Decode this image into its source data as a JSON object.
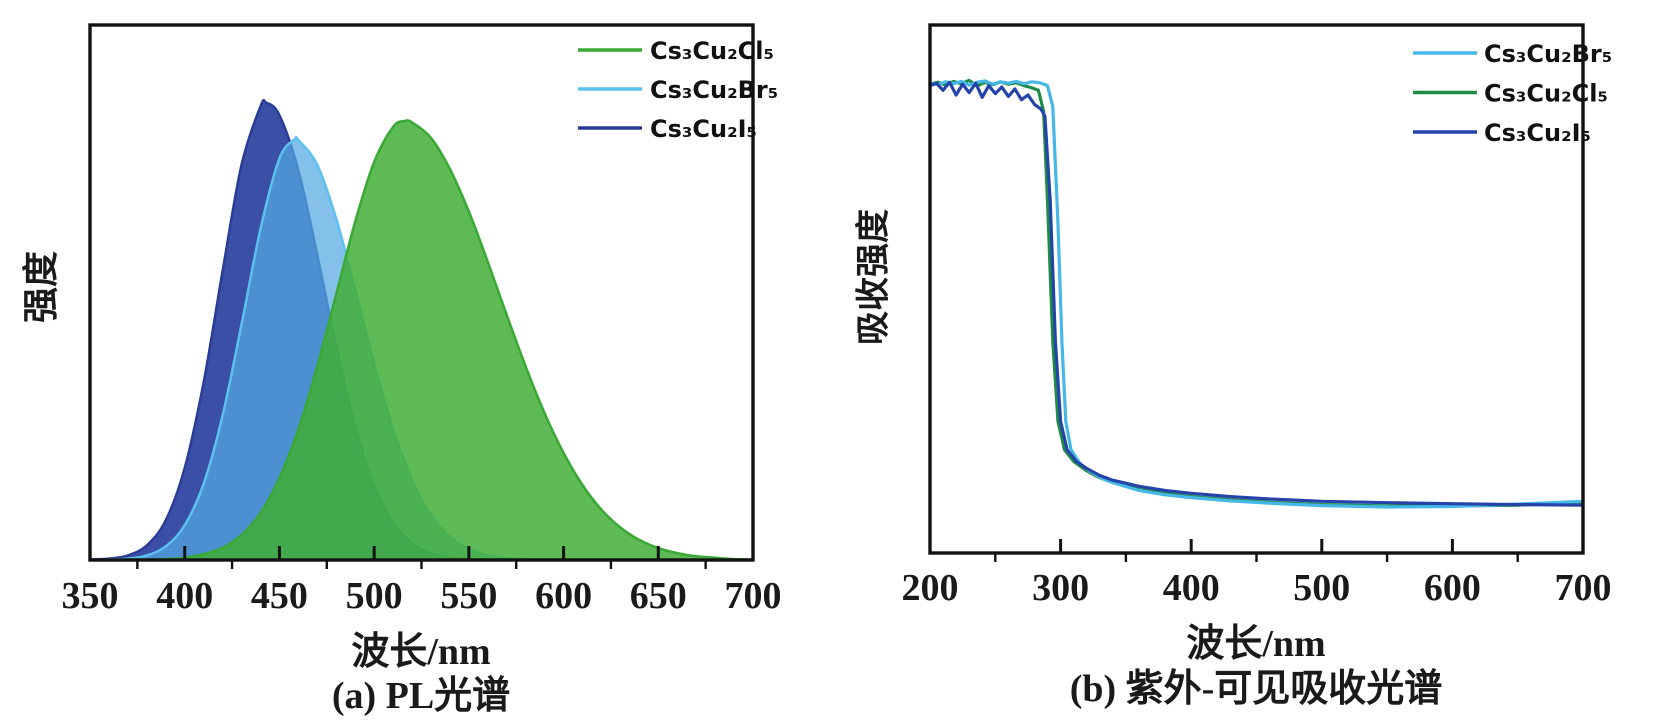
{
  "figure": {
    "background": "#ffffff",
    "frame_color": "#111111"
  },
  "chart_data": [
    {
      "type": "area",
      "id": "a",
      "caption": "(a) PL光谱",
      "xlabel": "波长/nm",
      "ylabel": "强度",
      "xlim": [
        350,
        700
      ],
      "ylim": [
        0,
        1.17
      ],
      "xticks": [
        350,
        400,
        450,
        500,
        550,
        600,
        650,
        700
      ],
      "xminor": [
        375,
        425,
        475,
        525,
        575,
        625,
        675
      ],
      "yticks": [],
      "grid": false,
      "legend_position": "top-right",
      "draw_order": [
        2,
        1,
        0
      ],
      "series": [
        {
          "name": "Cs₃Cu₂Cl₅",
          "color": "#3aa835",
          "fill": "#41ae36",
          "fill_opacity": 0.85,
          "peak_nm": 516,
          "x": [
            350,
            360,
            370,
            380,
            390,
            400,
            410,
            420,
            430,
            440,
            450,
            460,
            470,
            480,
            490,
            500,
            510,
            516,
            520,
            530,
            540,
            550,
            560,
            570,
            580,
            590,
            600,
            610,
            620,
            630,
            640,
            650,
            660,
            670,
            680,
            690,
            700
          ],
          "y": [
            0,
            0,
            0.001,
            0.001,
            0.002,
            0.005,
            0.013,
            0.027,
            0.055,
            0.103,
            0.179,
            0.286,
            0.424,
            0.582,
            0.74,
            0.87,
            0.947,
            0.96,
            0.957,
            0.923,
            0.855,
            0.762,
            0.652,
            0.536,
            0.423,
            0.321,
            0.234,
            0.164,
            0.11,
            0.071,
            0.044,
            0.026,
            0.015,
            0.008,
            0.005,
            0.002,
            0.001
          ]
        },
        {
          "name": "Cs₃Cu₂Br₅",
          "color": "#5cc1ee",
          "fill": "#55a9e2",
          "fill_opacity": 0.72,
          "peak_nm": 458,
          "x": [
            350,
            360,
            370,
            380,
            390,
            400,
            410,
            420,
            430,
            440,
            450,
            458,
            460,
            470,
            480,
            490,
            500,
            510,
            520,
            530,
            540,
            550,
            560,
            570,
            580,
            590,
            600
          ],
          "y": [
            0,
            0.001,
            0.003,
            0.01,
            0.03,
            0.076,
            0.167,
            0.316,
            0.515,
            0.724,
            0.878,
            0.92,
            0.918,
            0.864,
            0.746,
            0.591,
            0.429,
            0.286,
            0.175,
            0.098,
            0.05,
            0.024,
            0.01,
            0.004,
            0.002,
            0.001,
            0
          ]
        },
        {
          "name": "Cs₃Cu₂I₅",
          "color": "#2a3d96",
          "fill": "#3a4fa5",
          "fill_opacity": 1.0,
          "peak_nm": 443,
          "x": [
            350,
            360,
            370,
            380,
            390,
            400,
            410,
            420,
            430,
            440,
            443,
            450,
            460,
            470,
            480,
            490,
            500,
            510,
            520,
            530,
            540,
            550,
            560,
            570
          ],
          "y": [
            0.001,
            0.003,
            0.01,
            0.032,
            0.087,
            0.201,
            0.389,
            0.632,
            0.864,
            0.992,
            1.0,
            0.973,
            0.852,
            0.667,
            0.467,
            0.293,
            0.164,
            0.083,
            0.037,
            0.015,
            0.005,
            0.002,
            0.001,
            0
          ]
        }
      ]
    },
    {
      "type": "line",
      "id": "b",
      "caption": "(b) 紫外-可见吸收光谱",
      "xlabel": "波长/nm",
      "ylabel": "吸收强度",
      "xlim": [
        200,
        700
      ],
      "ylim": [
        0,
        1.124
      ],
      "xticks": [
        200,
        300,
        400,
        500,
        600,
        700
      ],
      "xminor": [
        250,
        350,
        450,
        550,
        650
      ],
      "yticks": [],
      "grid": false,
      "legend_position": "top-right",
      "draw_order": [
        1,
        0,
        2
      ],
      "series": [
        {
          "name": "Cs₃Cu₂Br₅",
          "color": "#45b7e8",
          "absorption_edge_nm": 298,
          "x": [
            200,
            206,
            212,
            218,
            224,
            230,
            236,
            242,
            248,
            254,
            260,
            266,
            272,
            278,
            284,
            290,
            294,
            298,
            301,
            304,
            308,
            315,
            322,
            332,
            342,
            360,
            380,
            400,
            430,
            460,
            500,
            550,
            600,
            650,
            700
          ],
          "y": [
            1.0,
            0.997,
            1.003,
            0.999,
            1.004,
            0.996,
            1.002,
            1.005,
            0.998,
            1.003,
            1.0,
            1.004,
            0.999,
            1.003,
            1.001,
            0.995,
            0.95,
            0.7,
            0.45,
            0.28,
            0.22,
            0.19,
            0.175,
            0.158,
            0.148,
            0.133,
            0.124,
            0.118,
            0.111,
            0.106,
            0.101,
            0.098,
            0.099,
            0.104,
            0.11
          ]
        },
        {
          "name": "Cs₃Cu₂Cl₅",
          "color": "#1f8c44",
          "absorption_edge_nm": 290,
          "x": [
            200,
            206,
            212,
            218,
            224,
            230,
            236,
            242,
            248,
            254,
            260,
            266,
            272,
            278,
            283,
            287,
            290,
            294,
            298,
            303,
            310,
            320,
            330,
            340,
            360,
            380,
            400,
            430,
            460,
            500,
            550,
            600,
            650,
            700
          ],
          "y": [
            0.998,
            1.002,
            0.996,
            1.004,
            0.999,
            1.006,
            0.994,
            1.002,
            0.997,
            1.003,
            0.998,
            1.001,
            0.995,
            0.99,
            0.985,
            0.94,
            0.75,
            0.45,
            0.28,
            0.22,
            0.195,
            0.175,
            0.16,
            0.15,
            0.135,
            0.127,
            0.12,
            0.113,
            0.108,
            0.103,
            0.1,
            0.1,
            0.102,
            0.107
          ]
        },
        {
          "name": "Cs₃Cu₂I₅",
          "color": "#2444aa",
          "absorption_edge_nm": 294,
          "x": [
            200,
            205,
            210,
            215,
            220,
            225,
            230,
            235,
            240,
            245,
            250,
            255,
            260,
            265,
            270,
            275,
            280,
            285,
            288,
            292,
            296,
            300,
            305,
            312,
            320,
            330,
            340,
            360,
            380,
            400,
            430,
            460,
            500,
            550,
            600,
            650,
            700
          ],
          "y": [
            0.995,
            1.0,
            0.985,
            1.002,
            0.975,
            0.998,
            0.98,
            1.0,
            0.97,
            0.995,
            0.978,
            0.992,
            0.972,
            0.988,
            0.965,
            0.975,
            0.955,
            0.945,
            0.93,
            0.75,
            0.45,
            0.28,
            0.22,
            0.195,
            0.18,
            0.165,
            0.155,
            0.142,
            0.133,
            0.127,
            0.12,
            0.115,
            0.11,
            0.107,
            0.105,
            0.103,
            0.102
          ]
        }
      ]
    }
  ]
}
